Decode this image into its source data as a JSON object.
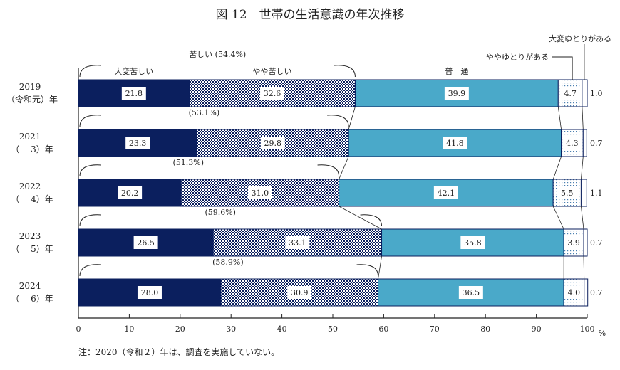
{
  "chart_data": {
    "type": "bar",
    "orientation": "horizontal",
    "stacked": true,
    "title": "図 12　世帯の生活意識の年次推移",
    "categories": [
      {
        "year": "2019",
        "era": "（令和元）年"
      },
      {
        "year": "2021",
        "era": "（　 3）年"
      },
      {
        "year": "2022",
        "era": "（　 4）年"
      },
      {
        "year": "2023",
        "era": "（　 5）年"
      },
      {
        "year": "2024",
        "era": "（　 6）年"
      }
    ],
    "series": [
      {
        "name": "大変苦しい",
        "color": "#0b1f5e",
        "pattern": "solid",
        "values": [
          21.8,
          23.3,
          20.2,
          26.5,
          28.0
        ]
      },
      {
        "name": "やや苦しい",
        "color": "#0b1f5e",
        "pattern": "checker",
        "values": [
          32.6,
          29.8,
          31.0,
          33.1,
          30.9
        ]
      },
      {
        "name": "普　通",
        "color": "#4aa9c9",
        "pattern": "solid",
        "values": [
          39.9,
          41.8,
          42.1,
          35.8,
          36.5
        ]
      },
      {
        "name": "ややゆとりがある",
        "color": "#9cc3dc",
        "pattern": "dots",
        "values": [
          4.7,
          4.3,
          5.5,
          3.9,
          4.0
        ]
      },
      {
        "name": "大変ゆとりがある",
        "color": "#ffffff",
        "pattern": "solid",
        "values": [
          1.0,
          0.7,
          1.1,
          0.7,
          0.7
        ]
      }
    ],
    "value_labels": [
      [
        "21.8",
        "32.6",
        "39.9",
        "4.7",
        "1.0"
      ],
      [
        "23.3",
        "29.8",
        "41.8",
        "4.3",
        "0.7"
      ],
      [
        "20.2",
        "31.0",
        "42.1",
        "5.5",
        "1.1"
      ],
      [
        "26.5",
        "33.1",
        "35.8",
        "3.9",
        "0.7"
      ],
      [
        "28.0",
        "30.9",
        "36.5",
        "4.0",
        "0.7"
      ]
    ],
    "group_label": "苦しい",
    "group_totals": [
      "(54.4%)",
      "(53.1%)",
      "(51.3%)",
      "(59.6%)",
      "(58.9%)"
    ],
    "xlim": [
      0,
      100
    ],
    "xticks": [
      "0",
      "10",
      "20",
      "30",
      "40",
      "50",
      "60",
      "70",
      "80",
      "90",
      "100"
    ],
    "xunit": "%",
    "grid": false,
    "note": "注：2020（令和２）年は、調査を実施していない。"
  }
}
